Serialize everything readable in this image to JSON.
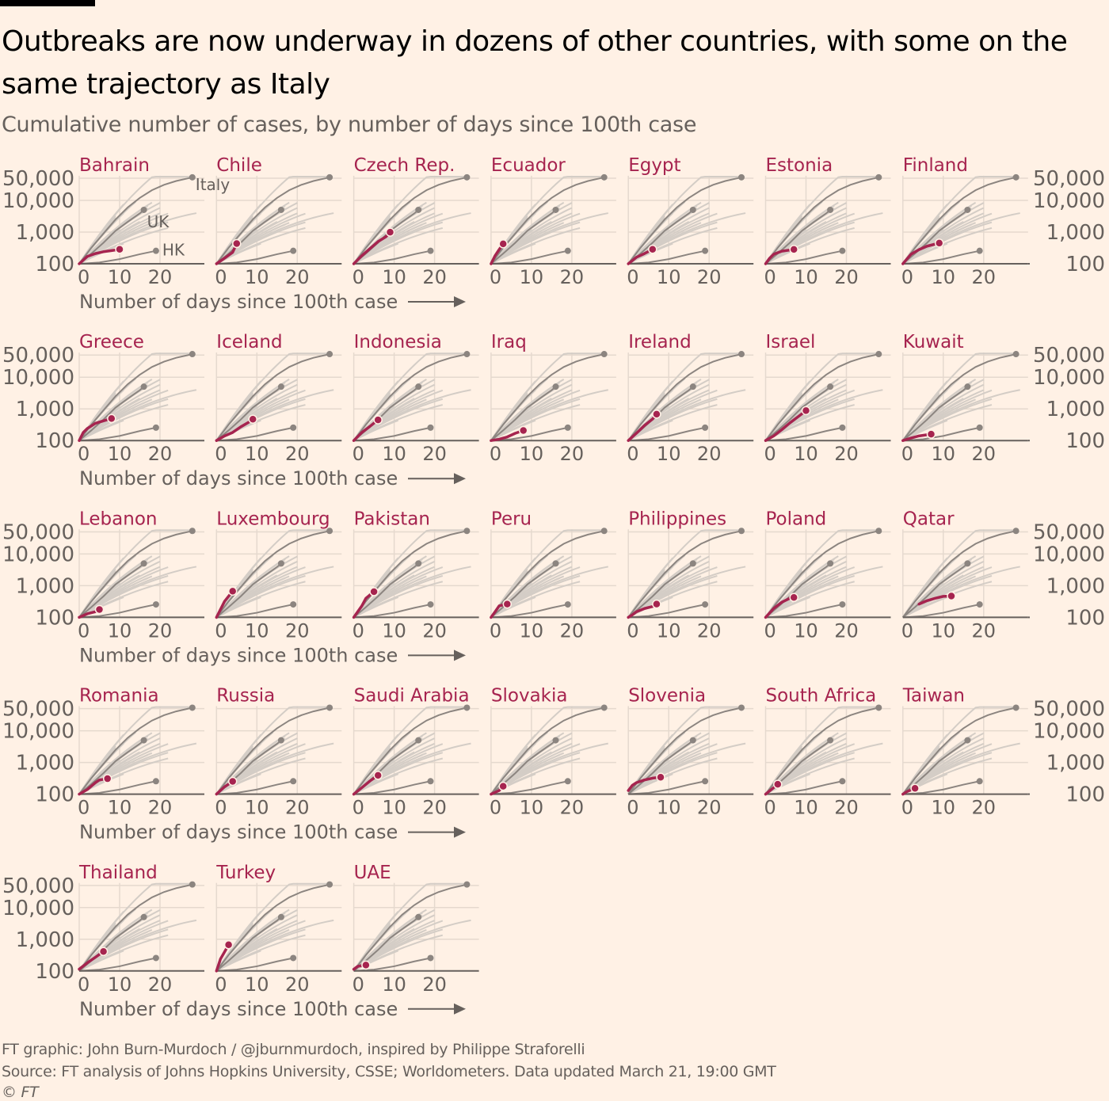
{
  "header": {
    "title": "Outbreaks are now underway in dozens of other countries, with some on the same trajectory as Italy",
    "subtitle": "Cumulative number of cases, by number of days since 100th case"
  },
  "footer": {
    "credit": "FT graphic: John Burn-Murdoch / @jburnmurdoch, inspired by Philippe Straforelli",
    "source": "Source: FT analysis of Johns Hopkins University, CSSE; Worldometers. Data updated March 21, 19:00 GMT",
    "copyright": "© FT"
  },
  "colors": {
    "highlight": "#a6244f",
    "reference": "#8c8580",
    "background_lines": "#d4cdc6",
    "grid": "#e5d9ce",
    "axis": "#66605c",
    "title_red": "#a6244f"
  },
  "chart_data": {
    "type": "line",
    "title": "Outbreaks are now underway in dozens of other countries, with some on the same trajectory as Italy",
    "subtitle": "Cumulative number of cases, by number of days since 100th case",
    "xlabel": "Number of days since 100th case",
    "ylabel": "Cumulative number of cases",
    "yscale": "log",
    "ylim": [
      100,
      60000
    ],
    "xlim": [
      0,
      31
    ],
    "xticks": [
      0,
      10,
      20
    ],
    "xtick_labels": [
      "0",
      "10",
      "20"
    ],
    "yticks": [
      100,
      1000,
      10000,
      50000
    ],
    "ytick_labels": [
      "100",
      "1,000",
      "10,000",
      "50,000"
    ],
    "grid": true,
    "reference_series": [
      {
        "name": "Italy",
        "label": "Italy",
        "x": [
          0,
          3,
          6,
          9,
          12,
          15,
          18,
          21,
          24,
          27,
          28
        ],
        "y": [
          100,
          320,
          900,
          2500,
          6000,
          12000,
          21000,
          31000,
          41000,
          50000,
          53578
        ]
      },
      {
        "name": "UK",
        "label": "UK",
        "x": [
          0,
          3,
          6,
          9,
          12,
          15,
          16
        ],
        "y": [
          100,
          210,
          460,
          1100,
          2100,
          3900,
          5018
        ]
      },
      {
        "name": "HK",
        "label": "HK",
        "x": [
          0,
          5,
          10,
          15,
          19
        ],
        "y": [
          100,
          110,
          140,
          200,
          256
        ]
      }
    ],
    "panels": [
      {
        "country": "Bahrain",
        "x": [
          0,
          2,
          4,
          6,
          8,
          10
        ],
        "y": [
          100,
          170,
          210,
          240,
          260,
          285
        ]
      },
      {
        "country": "Chile",
        "x": [
          0,
          2,
          4,
          5
        ],
        "y": [
          100,
          150,
          230,
          434
        ]
      },
      {
        "country": "Czech Rep.",
        "x": [
          0,
          2,
          4,
          6,
          8,
          9
        ],
        "y": [
          100,
          180,
          300,
          500,
          720,
          995
        ]
      },
      {
        "country": "Ecuador",
        "x": [
          0,
          1,
          2,
          3
        ],
        "y": [
          100,
          180,
          280,
          426
        ]
      },
      {
        "country": "Egypt",
        "x": [
          0,
          2,
          4,
          6
        ],
        "y": [
          100,
          160,
          210,
          285
        ]
      },
      {
        "country": "Estonia",
        "x": [
          0,
          1,
          2,
          4,
          7
        ],
        "y": [
          100,
          150,
          200,
          250,
          283
        ]
      },
      {
        "country": "Finland",
        "x": [
          0,
          2,
          4,
          6,
          9
        ],
        "y": [
          100,
          200,
          280,
          360,
          450
        ]
      },
      {
        "country": "Greece",
        "x": [
          0,
          1,
          2,
          4,
          6,
          8
        ],
        "y": [
          100,
          180,
          240,
          350,
          420,
          495
        ]
      },
      {
        "country": "Iceland",
        "x": [
          0,
          2,
          4,
          6,
          8,
          9
        ],
        "y": [
          100,
          140,
          180,
          270,
          380,
          473
        ]
      },
      {
        "country": "Indonesia",
        "x": [
          0,
          2,
          4,
          6
        ],
        "y": [
          100,
          180,
          280,
          450
        ]
      },
      {
        "country": "Iraq",
        "x": [
          0,
          2,
          4,
          6,
          8
        ],
        "y": [
          100,
          110,
          130,
          170,
          208
        ]
      },
      {
        "country": "Ireland",
        "x": [
          0,
          2,
          4,
          6,
          7
        ],
        "y": [
          100,
          170,
          300,
          480,
          683
        ]
      },
      {
        "country": "Israel",
        "x": [
          0,
          2,
          4,
          6,
          8,
          10
        ],
        "y": [
          100,
          140,
          220,
          360,
          560,
          883
        ]
      },
      {
        "country": "Kuwait",
        "x": [
          0,
          2,
          4,
          7
        ],
        "y": [
          100,
          120,
          140,
          159
        ]
      },
      {
        "country": "Lebanon",
        "x": [
          0,
          2,
          4,
          5
        ],
        "y": [
          100,
          130,
          150,
          177
        ]
      },
      {
        "country": "Luxembourg",
        "x": [
          0,
          2,
          4
        ],
        "y": [
          100,
          320,
          670
        ]
      },
      {
        "country": "Pakistan",
        "x": [
          0,
          2,
          3,
          5
        ],
        "y": [
          100,
          230,
          400,
          645
        ]
      },
      {
        "country": "Peru",
        "x": [
          0,
          1,
          2,
          4
        ],
        "y": [
          100,
          150,
          230,
          263
        ]
      },
      {
        "country": "Philippines",
        "x": [
          0,
          1,
          2,
          4,
          6,
          7
        ],
        "y": [
          100,
          120,
          150,
          190,
          220,
          262
        ]
      },
      {
        "country": "Poland",
        "x": [
          0,
          2,
          4,
          6,
          7
        ],
        "y": [
          100,
          190,
          300,
          400,
          425
        ]
      },
      {
        "country": "Qatar",
        "x": [
          4,
          6,
          8,
          10,
          12
        ],
        "y": [
          262,
          337,
          401,
          460,
          470
        ]
      },
      {
        "country": "Romania",
        "x": [
          0,
          2,
          4,
          5,
          7
        ],
        "y": [
          100,
          140,
          230,
          280,
          308
        ]
      },
      {
        "country": "Russia",
        "x": [
          0,
          2,
          4
        ],
        "y": [
          100,
          170,
          253
        ]
      },
      {
        "country": "Saudi Arabia",
        "x": [
          0,
          2,
          4,
          6
        ],
        "y": [
          100,
          160,
          260,
          392
        ]
      },
      {
        "country": "Slovakia",
        "x": [
          0,
          2,
          3
        ],
        "y": [
          100,
          130,
          178
        ]
      },
      {
        "country": "Slovenia",
        "x": [
          0,
          1,
          2,
          4,
          6,
          8
        ],
        "y": [
          130,
          190,
          230,
          280,
          320,
          341
        ]
      },
      {
        "country": "South Africa",
        "x": [
          0,
          2,
          3
        ],
        "y": [
          100,
          160,
          205
        ]
      },
      {
        "country": "Taiwan",
        "x": [
          0,
          1,
          3
        ],
        "y": [
          100,
          120,
          153
        ]
      },
      {
        "country": "Thailand",
        "x": [
          0,
          2,
          4,
          6
        ],
        "y": [
          114,
          180,
          270,
          411
        ]
      },
      {
        "country": "Turkey",
        "x": [
          0,
          1,
          2,
          3
        ],
        "y": [
          100,
          240,
          400,
          670
        ]
      },
      {
        "country": "UAE",
        "x": [
          0,
          1,
          3
        ],
        "y": [
          113,
          140,
          153
        ]
      }
    ]
  }
}
